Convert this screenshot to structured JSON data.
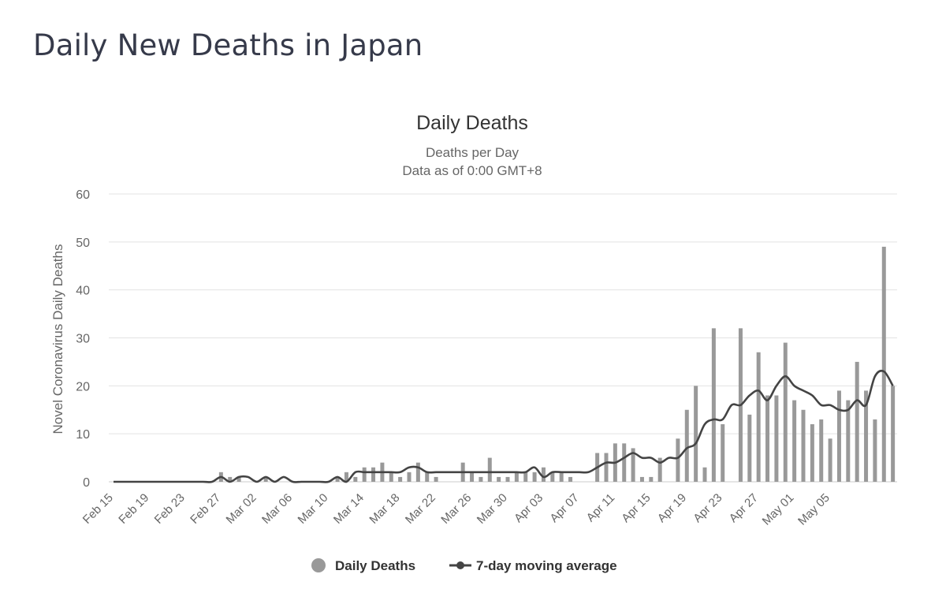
{
  "page": {
    "title": "Daily New Deaths in Japan"
  },
  "colors": {
    "bar": "#999999",
    "line": "#444444",
    "grid": "#e3e3e3",
    "axis_text": "#666666",
    "title_text": "#333333"
  },
  "chart_data": {
    "type": "bar",
    "title": "Daily Deaths",
    "subtitle": [
      "Deaths per Day",
      "Data as of 0:00 GMT+8"
    ],
    "ylabel": "Novel Coronavirus Daily Deaths",
    "xlabel": "",
    "ylim": [
      0,
      60
    ],
    "yticks": [
      0,
      10,
      20,
      30,
      40,
      50,
      60
    ],
    "grid": true,
    "legend_position": "bottom",
    "xtick_labels": [
      "Feb 15",
      "Feb 19",
      "Feb 23",
      "Feb 27",
      "Mar 02",
      "Mar 06",
      "Mar 10",
      "Mar 14",
      "Mar 18",
      "Mar 22",
      "Mar 26",
      "Mar 30",
      "Apr 03",
      "Apr 07",
      "Apr 11",
      "Apr 15",
      "Apr 19",
      "Apr 23",
      "Apr 27",
      "May 01",
      "May 05"
    ],
    "x_start": "Feb 15",
    "x_end": "May 05",
    "series": [
      {
        "name": "Daily Deaths",
        "kind": "bar",
        "values": [
          0,
          0,
          0,
          0,
          0,
          0,
          0,
          0,
          0,
          0,
          0,
          0,
          2,
          1,
          1,
          0,
          0,
          1,
          0,
          0,
          0,
          0,
          0,
          0,
          0,
          1,
          2,
          1,
          3,
          3,
          4,
          2,
          1,
          2,
          4,
          2,
          1,
          0,
          0,
          4,
          2,
          1,
          5,
          1,
          1,
          2,
          2,
          2,
          3,
          2,
          2,
          1,
          0,
          0,
          6,
          6,
          8,
          8,
          7,
          1,
          1,
          5,
          0,
          9,
          15,
          20,
          3,
          32,
          12,
          0,
          32,
          14,
          27,
          18,
          18,
          29,
          17,
          15,
          12,
          13,
          9,
          19,
          17,
          25,
          19,
          13,
          49,
          20
        ]
      },
      {
        "name": "7-day moving average",
        "kind": "line",
        "values": [
          0,
          0,
          0,
          0,
          0,
          0,
          0,
          0,
          0,
          0,
          0,
          0,
          1,
          0,
          1,
          1,
          0,
          1,
          0,
          1,
          0,
          0,
          0,
          0,
          0,
          1,
          0,
          2,
          2,
          2,
          2,
          2,
          2,
          3,
          3,
          2,
          2,
          2,
          2,
          2,
          2,
          2,
          2,
          2,
          2,
          2,
          2,
          3,
          1,
          2,
          2,
          2,
          2,
          2,
          3,
          4,
          4,
          5,
          6,
          5,
          5,
          4,
          5,
          5,
          7,
          8,
          12,
          13,
          13,
          16,
          16,
          18,
          19,
          17,
          20,
          22,
          20,
          19,
          18,
          16,
          16,
          15,
          15,
          17,
          16,
          22,
          23,
          20
        ]
      }
    ]
  }
}
